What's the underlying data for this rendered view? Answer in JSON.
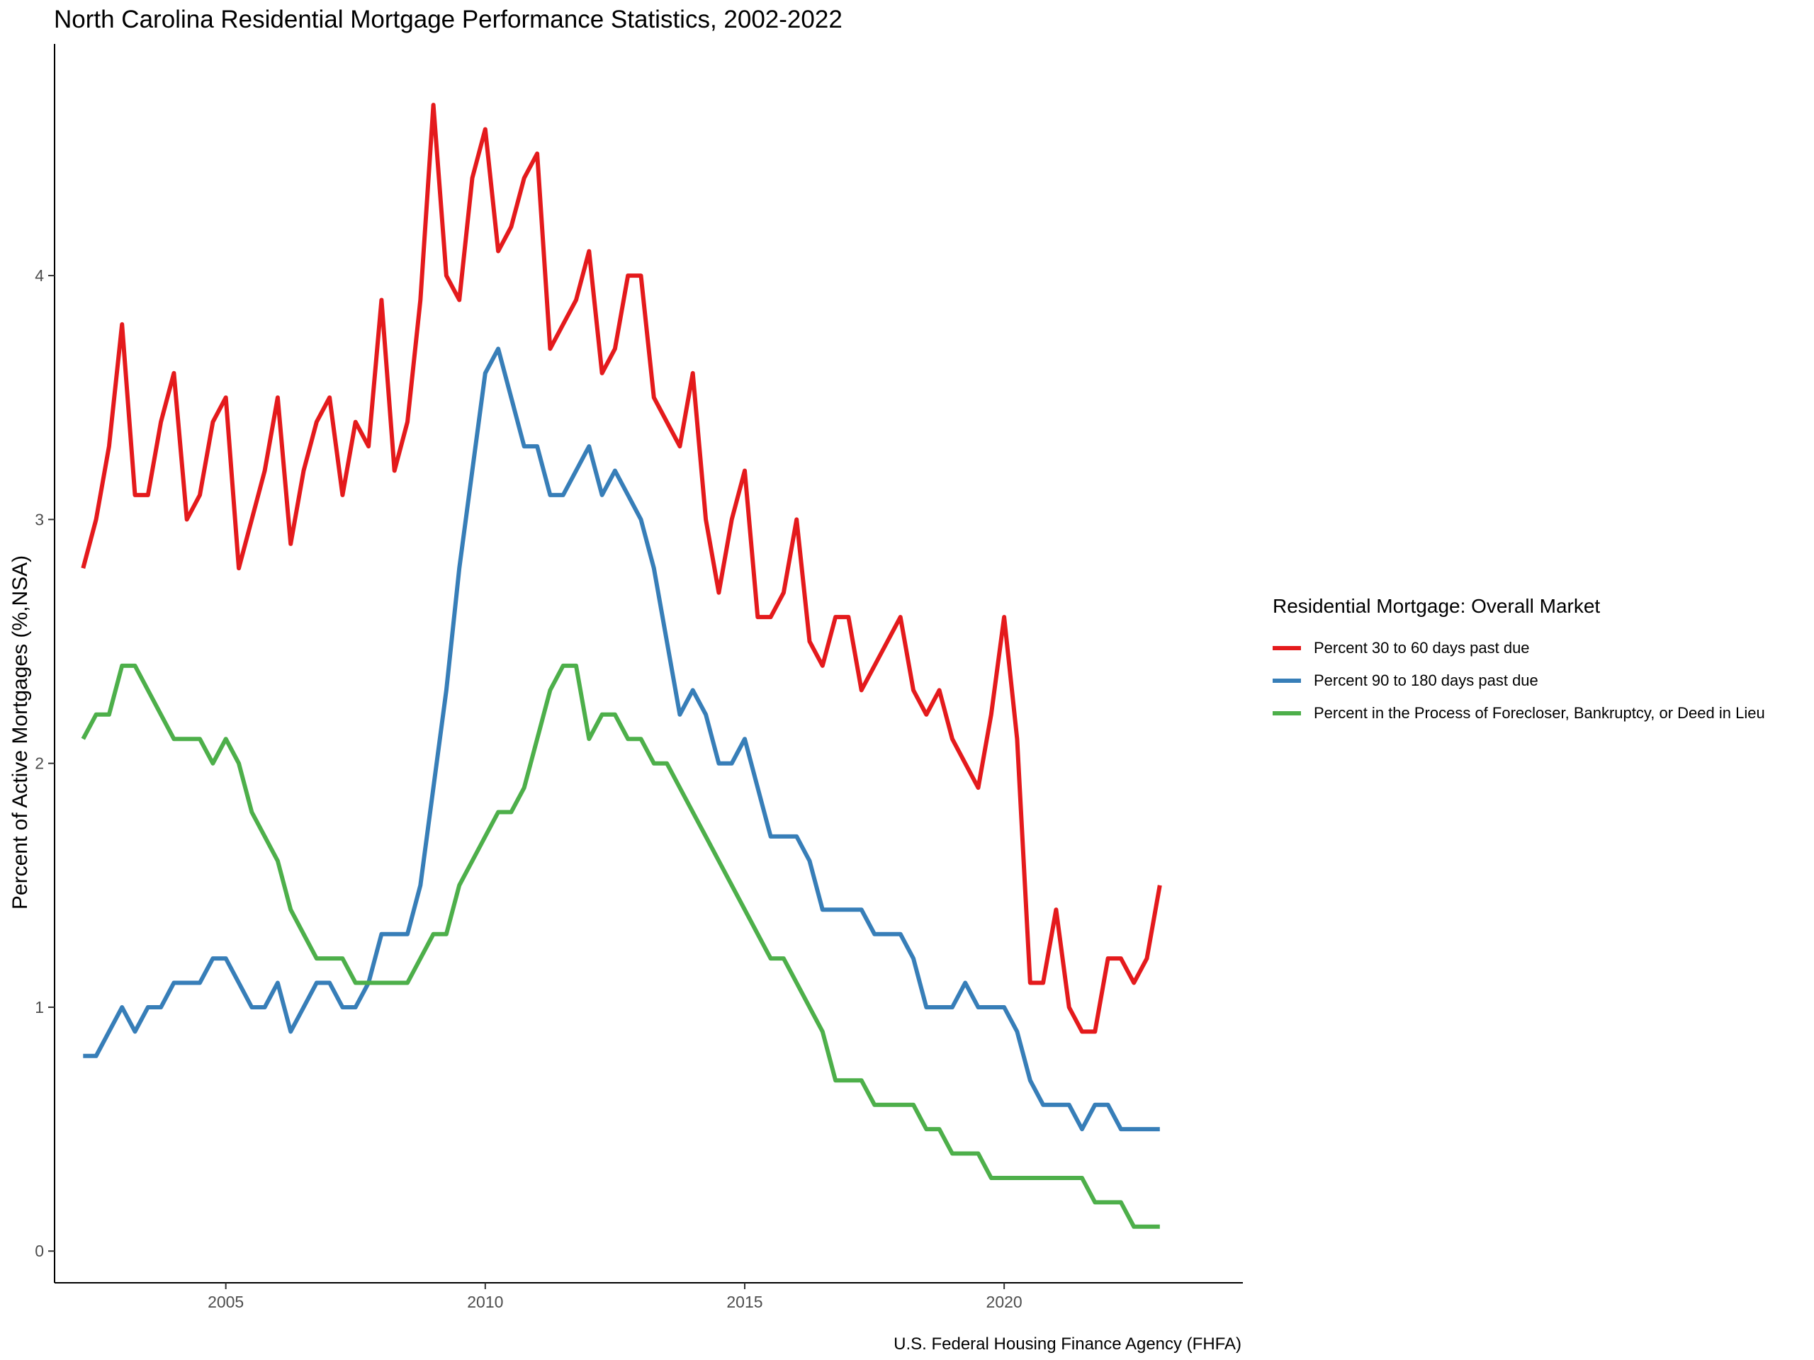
{
  "chart_data": {
    "type": "line",
    "title": "North Carolina Residential Mortgage Performance Statistics, 2002-2022",
    "caption": "U.S. Federal Housing Finance Agency (FHFA)",
    "xlabel": "",
    "ylabel": "Percent of Active Mortgages (%,NSA)",
    "xlim": [
      2001.7,
      2024.6
    ],
    "ylim": [
      -0.13,
      4.95
    ],
    "x_ticks": [
      2005,
      2010,
      2015,
      2020
    ],
    "x_tick_labels": [
      "2005",
      "2010",
      "2015",
      "2020"
    ],
    "y_ticks": [
      0,
      1,
      2,
      3,
      4
    ],
    "y_tick_labels": [
      "0",
      "1",
      "2",
      "3",
      "4"
    ],
    "grid": false,
    "legend": {
      "title": "Residential Mortgage: Overall Market",
      "position": "right"
    },
    "x": [
      2002.25,
      2002.5,
      2002.75,
      2003.0,
      2003.25,
      2003.5,
      2003.75,
      2004.0,
      2004.25,
      2004.5,
      2004.75,
      2005.0,
      2005.25,
      2005.5,
      2005.75,
      2006.0,
      2006.25,
      2006.5,
      2006.75,
      2007.0,
      2007.25,
      2007.5,
      2007.75,
      2008.0,
      2008.25,
      2008.5,
      2008.75,
      2009.0,
      2009.25,
      2009.5,
      2009.75,
      2010.0,
      2010.25,
      2010.5,
      2010.75,
      2011.0,
      2011.25,
      2011.5,
      2011.75,
      2012.0,
      2012.25,
      2012.5,
      2012.75,
      2013.0,
      2013.25,
      2013.5,
      2013.75,
      2014.0,
      2014.25,
      2014.5,
      2014.75,
      2015.0,
      2015.25,
      2015.5,
      2015.75,
      2016.0,
      2016.25,
      2016.5,
      2016.75,
      2017.0,
      2017.25,
      2017.5,
      2017.75,
      2018.0,
      2018.25,
      2018.5,
      2018.75,
      2019.0,
      2019.25,
      2019.5,
      2019.75,
      2020.0,
      2020.25,
      2020.5,
      2020.75,
      2021.0,
      2021.25,
      2021.5,
      2021.75,
      2022.0,
      2022.25,
      2022.5,
      2022.75,
      2023.0
    ],
    "series": [
      {
        "name": "Percent 30 to 60 days past due",
        "color": "#E41A1C",
        "values": [
          2.8,
          3.0,
          3.3,
          3.8,
          3.1,
          3.1,
          3.4,
          3.6,
          3.0,
          3.1,
          3.4,
          3.5,
          2.8,
          3.0,
          3.2,
          3.5,
          2.9,
          3.2,
          3.4,
          3.5,
          3.1,
          3.4,
          3.3,
          3.9,
          3.2,
          3.4,
          3.9,
          4.7,
          4.0,
          3.9,
          4.4,
          4.6,
          4.1,
          4.2,
          4.4,
          4.5,
          3.7,
          3.8,
          3.9,
          4.1,
          3.6,
          3.7,
          4.0,
          4.0,
          3.5,
          3.4,
          3.3,
          3.6,
          3.0,
          2.7,
          3.0,
          3.2,
          2.6,
          2.6,
          2.7,
          3.0,
          2.5,
          2.4,
          2.6,
          2.6,
          2.3,
          2.4,
          2.5,
          2.6,
          2.3,
          2.2,
          2.3,
          2.1,
          2.0,
          1.9,
          2.2,
          2.6,
          2.1,
          1.1,
          1.1,
          1.4,
          1.0,
          0.9,
          0.9,
          1.2,
          1.2,
          1.1,
          1.2,
          1.5
        ]
      },
      {
        "name": "Percent 90 to 180 days past due",
        "color": "#377EB8",
        "values": [
          0.8,
          0.8,
          0.9,
          1.0,
          0.9,
          1.0,
          1.0,
          1.1,
          1.1,
          1.1,
          1.2,
          1.2,
          1.1,
          1.0,
          1.0,
          1.1,
          0.9,
          1.0,
          1.1,
          1.1,
          1.0,
          1.0,
          1.1,
          1.3,
          1.3,
          1.3,
          1.5,
          1.9,
          2.3,
          2.8,
          3.2,
          3.6,
          3.7,
          3.5,
          3.3,
          3.3,
          3.1,
          3.1,
          3.2,
          3.3,
          3.1,
          3.2,
          3.1,
          3.0,
          2.8,
          2.5,
          2.2,
          2.3,
          2.2,
          2.0,
          2.0,
          2.1,
          1.9,
          1.7,
          1.7,
          1.7,
          1.6,
          1.4,
          1.4,
          1.4,
          1.4,
          1.3,
          1.3,
          1.3,
          1.2,
          1.0,
          1.0,
          1.0,
          1.1,
          1.0,
          1.0,
          1.0,
          0.9,
          0.7,
          0.6,
          0.6,
          0.6,
          0.5,
          0.6,
          0.6,
          0.5,
          0.5,
          0.5,
          0.5
        ]
      },
      {
        "name": "Percent in the Process of Forecloser, Bankruptcy, or Deed in Lieu",
        "color": "#4DAF4A",
        "values": [
          2.1,
          2.2,
          2.2,
          2.4,
          2.4,
          2.3,
          2.2,
          2.1,
          2.1,
          2.1,
          2.0,
          2.1,
          2.0,
          1.8,
          1.7,
          1.6,
          1.4,
          1.3,
          1.2,
          1.2,
          1.2,
          1.1,
          1.1,
          1.1,
          1.1,
          1.1,
          1.2,
          1.3,
          1.3,
          1.5,
          1.6,
          1.7,
          1.8,
          1.8,
          1.9,
          2.1,
          2.3,
          2.4,
          2.4,
          2.1,
          2.2,
          2.2,
          2.1,
          2.1,
          2.0,
          2.0,
          1.9,
          1.8,
          1.7,
          1.6,
          1.5,
          1.4,
          1.3,
          1.2,
          1.2,
          1.1,
          1.0,
          0.9,
          0.7,
          0.7,
          0.7,
          0.6,
          0.6,
          0.6,
          0.6,
          0.5,
          0.5,
          0.4,
          0.4,
          0.4,
          0.3,
          0.3,
          0.3,
          0.3,
          0.3,
          0.3,
          0.3,
          0.3,
          0.2,
          0.2,
          0.2,
          0.1,
          0.1,
          0.1
        ]
      }
    ]
  }
}
